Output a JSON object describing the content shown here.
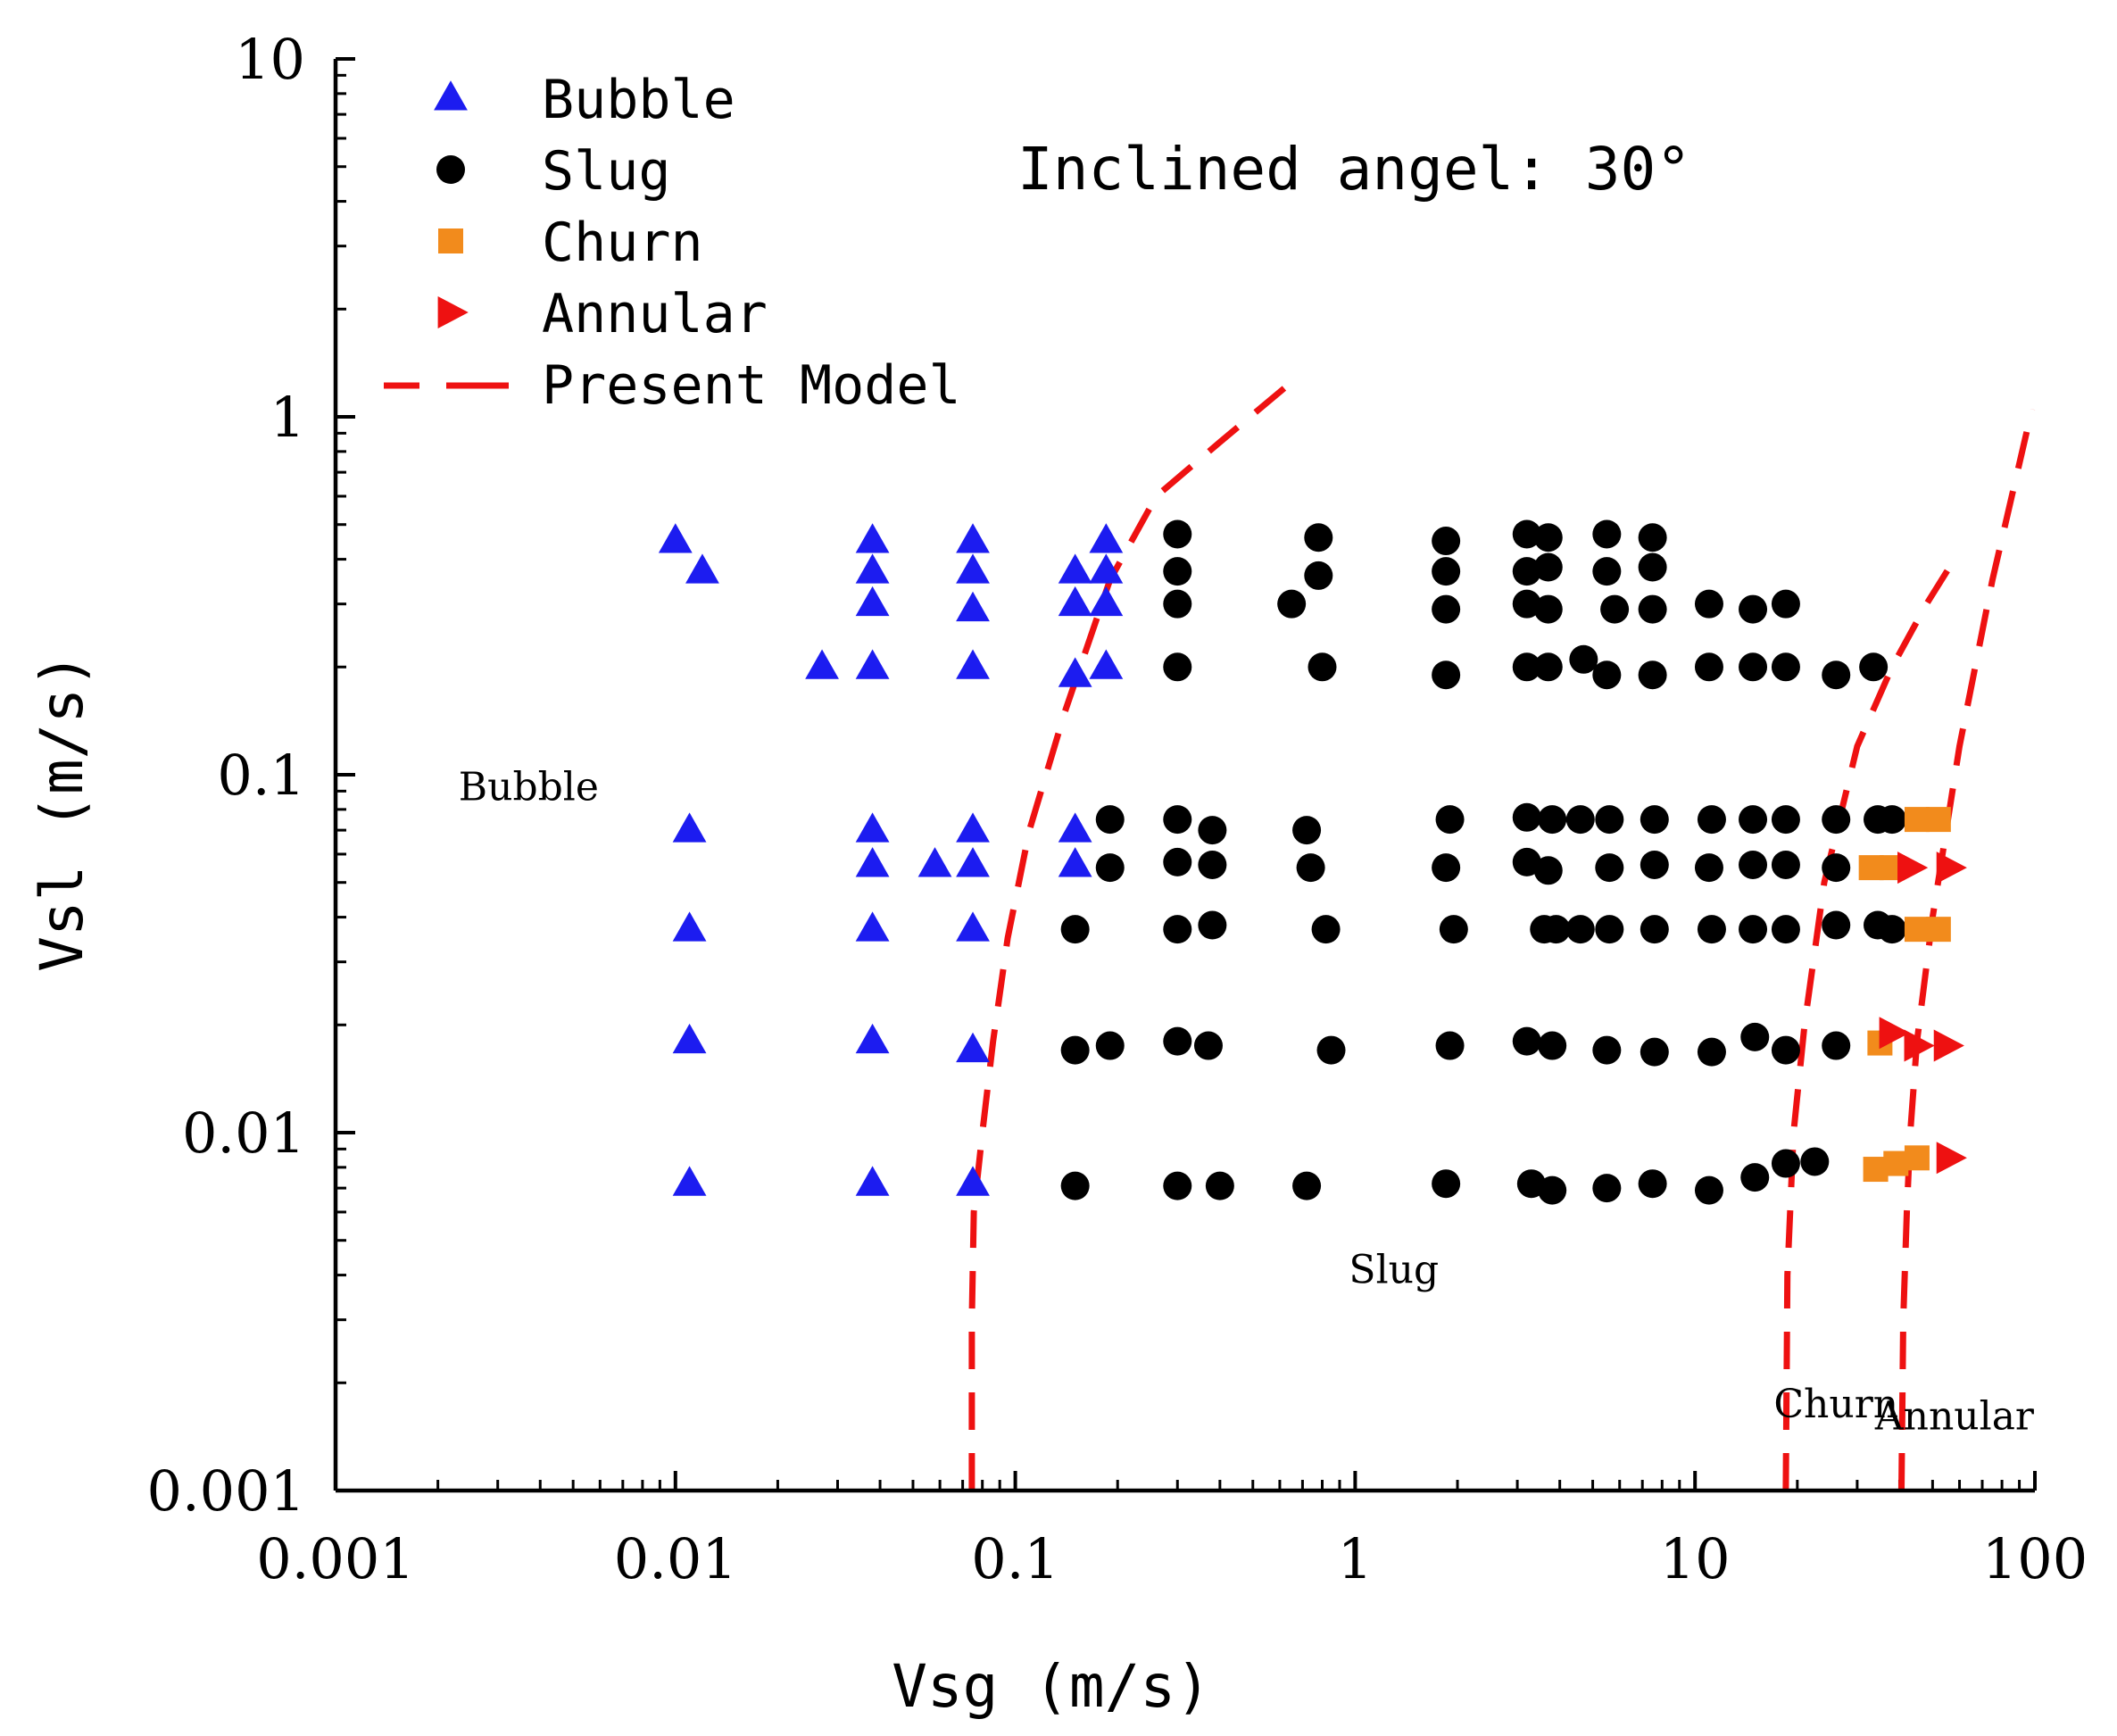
{
  "chart_data": {
    "type": "scatter",
    "title": "",
    "annotation": "Inclined angel: 30°",
    "xlabel": "Vsg (m/s)",
    "ylabel": "Vsl (m/s)",
    "xscale": "log",
    "yscale": "log",
    "xlim": [
      0.001,
      100
    ],
    "ylim": [
      0.001,
      10
    ],
    "xticks": [
      0.001,
      0.01,
      0.1,
      1,
      10,
      100
    ],
    "xtick_labels": [
      "0.001",
      "0.01",
      "0.1",
      "1",
      "10",
      "100"
    ],
    "yticks": [
      0.001,
      0.01,
      0.1,
      1,
      10
    ],
    "ytick_labels": [
      "0.001",
      "0.01",
      "0.1",
      "1",
      "10"
    ],
    "legend_position": "top-left",
    "region_labels": [
      {
        "text": "Bubble",
        "x": 0.0037,
        "y": 0.085
      },
      {
        "text": "Slug",
        "x": 1.3,
        "y": 0.0038
      },
      {
        "text": "Churn",
        "x": 26,
        "y": 0.0016
      },
      {
        "text": "Annular",
        "x": 58,
        "y": 0.00148
      }
    ],
    "series": [
      {
        "name": "Bubble",
        "marker": "triangle-up",
        "color": "#1c1cf0",
        "points": [
          [
            0.01,
            0.45
          ],
          [
            0.012,
            0.37
          ],
          [
            0.011,
            0.07
          ],
          [
            0.011,
            0.037
          ],
          [
            0.011,
            0.018
          ],
          [
            0.011,
            0.0072
          ],
          [
            0.027,
            0.2
          ],
          [
            0.038,
            0.45
          ],
          [
            0.038,
            0.37
          ],
          [
            0.038,
            0.3
          ],
          [
            0.038,
            0.2
          ],
          [
            0.038,
            0.07
          ],
          [
            0.038,
            0.056
          ],
          [
            0.038,
            0.037
          ],
          [
            0.038,
            0.018
          ],
          [
            0.038,
            0.0072
          ],
          [
            0.058,
            0.056
          ],
          [
            0.075,
            0.45
          ],
          [
            0.075,
            0.37
          ],
          [
            0.075,
            0.29
          ],
          [
            0.075,
            0.2
          ],
          [
            0.075,
            0.07
          ],
          [
            0.075,
            0.056
          ],
          [
            0.075,
            0.037
          ],
          [
            0.075,
            0.017
          ],
          [
            0.075,
            0.0072
          ],
          [
            0.15,
            0.37
          ],
          [
            0.15,
            0.3
          ],
          [
            0.15,
            0.19
          ],
          [
            0.15,
            0.07
          ],
          [
            0.15,
            0.056
          ],
          [
            0.185,
            0.45
          ],
          [
            0.185,
            0.37
          ],
          [
            0.185,
            0.3
          ],
          [
            0.185,
            0.2
          ]
        ]
      },
      {
        "name": "Slug",
        "marker": "circle",
        "color": "#000000",
        "points": [
          [
            0.3,
            0.47
          ],
          [
            0.3,
            0.37
          ],
          [
            0.3,
            0.3
          ],
          [
            0.3,
            0.2
          ],
          [
            0.65,
            0.3
          ],
          [
            0.78,
            0.46
          ],
          [
            0.78,
            0.36
          ],
          [
            0.8,
            0.2
          ],
          [
            1.85,
            0.45
          ],
          [
            1.85,
            0.37
          ],
          [
            1.85,
            0.29
          ],
          [
            1.85,
            0.19
          ],
          [
            3.2,
            0.47
          ],
          [
            3.2,
            0.37
          ],
          [
            3.2,
            0.3
          ],
          [
            3.2,
            0.2
          ],
          [
            3.7,
            0.46
          ],
          [
            3.7,
            0.38
          ],
          [
            3.7,
            0.29
          ],
          [
            3.7,
            0.2
          ],
          [
            4.7,
            0.21
          ],
          [
            5.5,
            0.47
          ],
          [
            5.5,
            0.37
          ],
          [
            5.5,
            0.19
          ],
          [
            5.8,
            0.29
          ],
          [
            7.5,
            0.46
          ],
          [
            7.5,
            0.38
          ],
          [
            7.5,
            0.29
          ],
          [
            7.5,
            0.19
          ],
          [
            11,
            0.3
          ],
          [
            11,
            0.2
          ],
          [
            14.8,
            0.29
          ],
          [
            14.8,
            0.2
          ],
          [
            18.5,
            0.3
          ],
          [
            18.5,
            0.2
          ],
          [
            26,
            0.19
          ],
          [
            33.5,
            0.2
          ],
          [
            0.19,
            0.075
          ],
          [
            0.19,
            0.055
          ],
          [
            0.3,
            0.075
          ],
          [
            0.3,
            0.057
          ],
          [
            0.38,
            0.07
          ],
          [
            0.38,
            0.056
          ],
          [
            0.72,
            0.07
          ],
          [
            0.74,
            0.055
          ],
          [
            1.9,
            0.075
          ],
          [
            1.85,
            0.055
          ],
          [
            3.2,
            0.076
          ],
          [
            3.2,
            0.057
          ],
          [
            3.8,
            0.075
          ],
          [
            3.7,
            0.054
          ],
          [
            4.6,
            0.075
          ],
          [
            5.6,
            0.075
          ],
          [
            5.6,
            0.055
          ],
          [
            7.6,
            0.075
          ],
          [
            7.6,
            0.056
          ],
          [
            11.2,
            0.075
          ],
          [
            11,
            0.055
          ],
          [
            14.8,
            0.075
          ],
          [
            14.8,
            0.056
          ],
          [
            18.5,
            0.075
          ],
          [
            18.5,
            0.056
          ],
          [
            26,
            0.075
          ],
          [
            26,
            0.055
          ],
          [
            34.5,
            0.075
          ],
          [
            38,
            0.075
          ],
          [
            0.15,
            0.037
          ],
          [
            0.3,
            0.037
          ],
          [
            0.38,
            0.038
          ],
          [
            0.82,
            0.037
          ],
          [
            1.95,
            0.037
          ],
          [
            3.6,
            0.037
          ],
          [
            3.9,
            0.037
          ],
          [
            4.6,
            0.037
          ],
          [
            5.6,
            0.037
          ],
          [
            7.6,
            0.037
          ],
          [
            11.2,
            0.037
          ],
          [
            14.8,
            0.037
          ],
          [
            18.5,
            0.037
          ],
          [
            26,
            0.038
          ],
          [
            34.5,
            0.038
          ],
          [
            38,
            0.037
          ],
          [
            0.15,
            0.017
          ],
          [
            0.19,
            0.0175
          ],
          [
            0.3,
            0.018
          ],
          [
            0.37,
            0.0175
          ],
          [
            0.85,
            0.017
          ],
          [
            1.9,
            0.0175
          ],
          [
            3.2,
            0.018
          ],
          [
            3.8,
            0.0175
          ],
          [
            5.5,
            0.017
          ],
          [
            7.6,
            0.0168
          ],
          [
            11.2,
            0.0168
          ],
          [
            15,
            0.0185
          ],
          [
            18.5,
            0.017
          ],
          [
            26,
            0.0175
          ],
          [
            0.15,
            0.0071
          ],
          [
            0.3,
            0.0071
          ],
          [
            0.4,
            0.0071
          ],
          [
            0.72,
            0.0071
          ],
          [
            1.85,
            0.0072
          ],
          [
            3.3,
            0.0072
          ],
          [
            3.8,
            0.0069
          ],
          [
            5.5,
            0.007
          ],
          [
            7.5,
            0.0072
          ],
          [
            11,
            0.0069
          ],
          [
            15,
            0.0075
          ],
          [
            18.5,
            0.0082
          ],
          [
            22.5,
            0.0083
          ]
        ]
      },
      {
        "name": "Churn",
        "marker": "square",
        "color": "#f28b1c",
        "points": [
          [
            33,
            0.055
          ],
          [
            38,
            0.055
          ],
          [
            45,
            0.075
          ],
          [
            52,
            0.075
          ],
          [
            45,
            0.037
          ],
          [
            52,
            0.037
          ],
          [
            35,
            0.0178
          ],
          [
            34,
            0.0079
          ],
          [
            39,
            0.0082
          ],
          [
            45,
            0.0085
          ]
        ]
      },
      {
        "name": "Annular",
        "marker": "triangle-right",
        "color": "#ee1111",
        "points": [
          [
            43,
            0.055
          ],
          [
            56,
            0.055
          ],
          [
            38,
            0.019
          ],
          [
            45,
            0.0175
          ],
          [
            55,
            0.0175
          ],
          [
            56,
            0.0085
          ]
        ]
      },
      {
        "name": "Present Model",
        "marker": "dashed-line",
        "color": "#ee1111",
        "lines": [
          [
            [
              0.0745,
              0.001
            ],
            [
              0.0745,
              0.003
            ],
            [
              0.0755,
              0.006
            ],
            [
              0.08,
              0.01
            ],
            [
              0.086,
              0.018
            ],
            [
              0.095,
              0.035
            ],
            [
              0.11,
              0.07
            ],
            [
              0.14,
              0.15
            ],
            [
              0.19,
              0.35
            ],
            [
              0.26,
              0.6
            ],
            [
              0.4,
              0.85
            ],
            [
              0.63,
              1.22
            ]
          ],
          [
            [
              18.5,
              0.001
            ],
            [
              18.7,
              0.004
            ],
            [
              19.5,
              0.01
            ],
            [
              21,
              0.02
            ],
            [
              24,
              0.05
            ],
            [
              30,
              0.12
            ],
            [
              38,
              0.2
            ],
            [
              48,
              0.3
            ],
            [
              58,
              0.4
            ]
          ],
          [
            [
              40.5,
              0.001
            ],
            [
              41,
              0.003
            ],
            [
              42,
              0.006
            ],
            [
              43,
              0.01
            ],
            [
              45,
              0.018
            ],
            [
              50,
              0.04
            ],
            [
              60,
              0.12
            ],
            [
              75,
              0.35
            ],
            [
              98,
              1.05
            ]
          ]
        ]
      }
    ]
  }
}
